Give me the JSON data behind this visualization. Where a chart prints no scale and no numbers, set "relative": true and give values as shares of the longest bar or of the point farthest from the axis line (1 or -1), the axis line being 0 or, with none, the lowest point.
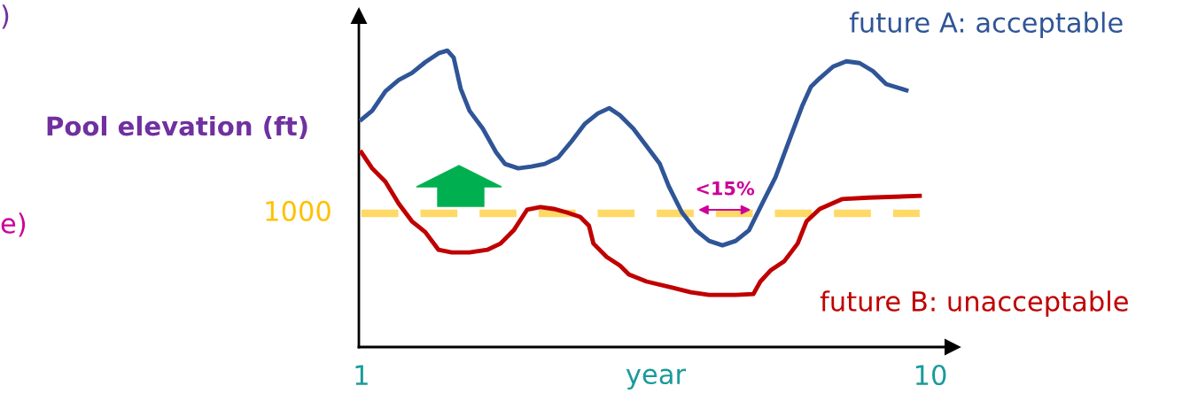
{
  "chart_data": {
    "type": "line",
    "relative": true,
    "ylabel": "Pool elevation (ft)",
    "xlabel": "year",
    "xlim": [
      0.96,
      10.35
    ],
    "xticks": [
      1,
      10
    ],
    "series": [
      {
        "name": "future A: acceptable",
        "color": "#2f5597",
        "x": [
          1.0,
          1.17,
          1.38,
          1.59,
          1.8,
          2.01,
          2.22,
          2.36,
          2.46,
          2.57,
          2.71,
          2.92,
          3.13,
          3.27,
          3.48,
          3.69,
          3.9,
          4.11,
          4.32,
          4.53,
          4.74,
          4.92,
          5.09,
          5.3,
          5.51,
          5.72,
          5.86,
          6.07,
          6.29,
          6.5,
          6.71,
          6.92,
          7.13,
          7.34,
          7.55,
          7.76,
          7.97,
          8.11,
          8.25,
          8.46,
          8.67,
          8.88,
          9.09,
          9.3,
          9.62
        ],
        "values": [
          0.767,
          0.797,
          0.863,
          0.901,
          0.925,
          0.961,
          0.991,
          1.0,
          0.976,
          0.872,
          0.797,
          0.737,
          0.657,
          0.618,
          0.603,
          0.609,
          0.618,
          0.639,
          0.693,
          0.752,
          0.788,
          0.806,
          0.782,
          0.737,
          0.678,
          0.618,
          0.543,
          0.454,
          0.394,
          0.358,
          0.343,
          0.358,
          0.394,
          0.484,
          0.573,
          0.693,
          0.812,
          0.878,
          0.907,
          0.946,
          0.964,
          0.958,
          0.931,
          0.887,
          0.866
        ]
      },
      {
        "name": "future B: unacceptable",
        "color": "#c00000",
        "x": [
          1.0,
          1.17,
          1.38,
          1.59,
          1.8,
          2.01,
          2.22,
          2.43,
          2.71,
          2.99,
          3.2,
          3.41,
          3.62,
          3.83,
          4.04,
          4.25,
          4.46,
          4.6,
          4.67,
          4.88,
          5.09,
          5.23,
          5.51,
          5.93,
          6.21,
          6.5,
          6.92,
          7.2,
          7.31,
          7.48,
          7.69,
          7.9,
          8.04,
          8.25,
          8.6,
          9.02,
          9.44,
          9.83
        ],
        "values": [
          0.657,
          0.603,
          0.558,
          0.484,
          0.424,
          0.388,
          0.328,
          0.319,
          0.319,
          0.328,
          0.349,
          0.394,
          0.463,
          0.472,
          0.466,
          0.454,
          0.439,
          0.409,
          0.349,
          0.304,
          0.275,
          0.245,
          0.221,
          0.2,
          0.185,
          0.176,
          0.176,
          0.179,
          0.221,
          0.26,
          0.29,
          0.349,
          0.424,
          0.466,
          0.499,
          0.504,
          0.507,
          0.51
        ]
      }
    ],
    "ref_lines": [
      {
        "axis": "y",
        "value": 0.451,
        "color": "#ffd966",
        "line_style": "dashed"
      }
    ],
    "annotations": [
      "<15%",
      ")",
      "e)",
      "1000"
    ],
    "grid": false,
    "marker": "none",
    "line_style": "solid"
  }
}
